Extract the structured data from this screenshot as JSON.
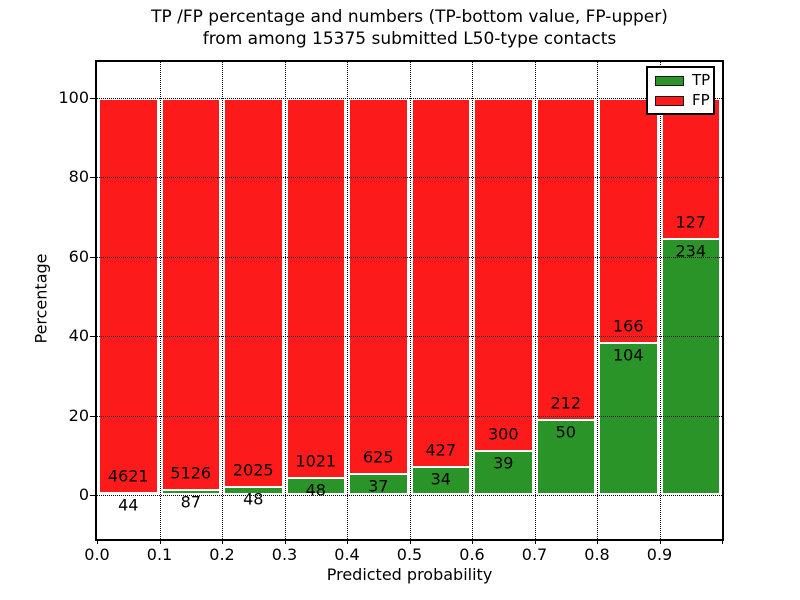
{
  "figure": {
    "title_line1": "TP /FP percentage and numbers (TP-bottom value, FP-upper)",
    "title_line2": "from among 15375 submitted L50-type contacts"
  },
  "chart_data": {
    "type": "bar",
    "stacked": true,
    "normalization": "each bin stacked to 100 percent",
    "title": "TP /FP percentage and numbers (TP-bottom value, FP-upper) from among 15375 submitted L50-type contacts",
    "xlabel": "Predicted probability",
    "ylabel": "Percentage",
    "total_contacts": 15375,
    "categories": [
      "0.0",
      "0.1",
      "0.2",
      "0.3",
      "0.4",
      "0.5",
      "0.6",
      "0.7",
      "0.8",
      "0.9"
    ],
    "bin_width": 0.1,
    "series": [
      {
        "name": "TP",
        "color": "#2a9428",
        "counts": [
          44,
          87,
          48,
          48,
          37,
          34,
          39,
          50,
          104,
          234
        ]
      },
      {
        "name": "FP",
        "color": "#fd1a1a",
        "counts": [
          4621,
          5126,
          2025,
          1021,
          625,
          427,
          300,
          212,
          166,
          127
        ]
      }
    ],
    "tp_percent_of_bin": [
      0.94,
      1.67,
      2.32,
      4.49,
      5.59,
      7.38,
      11.5,
      19.08,
      38.52,
      64.82
    ],
    "xticks": [
      "0.0",
      "0.1",
      "0.2",
      "0.3",
      "0.4",
      "0.5",
      "0.6",
      "0.7",
      "0.8",
      "0.9"
    ],
    "yticks": [
      0,
      20,
      40,
      60,
      80,
      100
    ],
    "xlim": [
      0.0,
      1.0
    ],
    "ylim": [
      -11,
      109
    ],
    "grid": "dotted, drawn above bars",
    "bar_edge_color": "#ffffff",
    "legend": {
      "position": "upper right",
      "entries": [
        "TP",
        "FP"
      ]
    }
  }
}
